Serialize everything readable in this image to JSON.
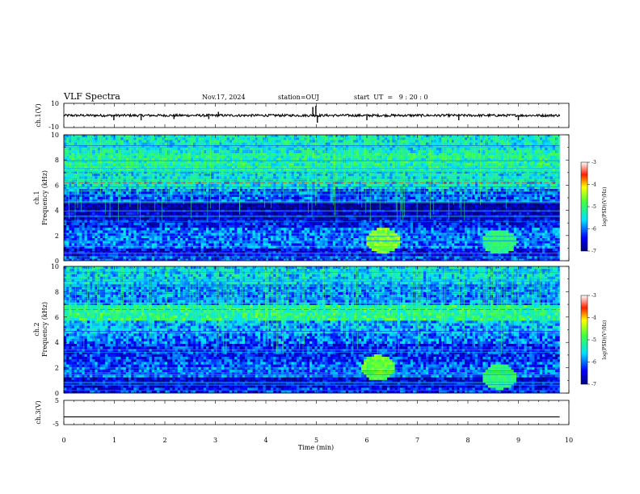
{
  "header": {
    "title": "VLF Spectra",
    "date": "Nov.17, 2024",
    "station": "station=OUJ",
    "start_ut": "start  UT  =   9 : 20 : 0"
  },
  "chart_data": [
    {
      "type": "line",
      "panel": "ch1-waveform",
      "ylabel": "ch.1(V)",
      "ylim": [
        -10,
        10
      ],
      "yticks": [
        "10",
        "-10"
      ],
      "xlim": [
        0,
        10
      ],
      "baseline": 0,
      "x_end": 9.82,
      "spikes": [
        {
          "x": 0.99,
          "y": -4
        },
        {
          "x": 1.53,
          "y": -4
        },
        {
          "x": 2.18,
          "y": -3
        },
        {
          "x": 2.87,
          "y": -3
        },
        {
          "x": 3.06,
          "y": 3
        },
        {
          "x": 4.93,
          "y": 7
        },
        {
          "x": 4.99,
          "y": 8
        },
        {
          "x": 5.02,
          "y": -6
        },
        {
          "x": 6.0,
          "y": -4
        },
        {
          "x": 7.82,
          "y": -4
        },
        {
          "x": 9.0,
          "y": -4
        }
      ],
      "color": "#000000"
    },
    {
      "type": "heatmap",
      "panel": "ch1-spectrogram",
      "ylabel": "ch.1\nFrequency (kHz)",
      "ylim": [
        0,
        10
      ],
      "yticks": [
        "0",
        "2",
        "4",
        "6",
        "8",
        "10"
      ],
      "xlim": [
        0,
        10
      ],
      "x_end": 9.82,
      "colorbar": {
        "label": "log(PSD)(V²/Hz)",
        "range": [
          -7,
          -3
        ],
        "ticks": [
          "-3",
          "-4",
          "-5",
          "-6",
          "-7"
        ]
      },
      "bands": [
        {
          "fmin": 0,
          "fmax": 0.4,
          "level": -6.2
        },
        {
          "fmin": 0.4,
          "fmax": 1.0,
          "level": -6.5
        },
        {
          "fmin": 1.0,
          "fmax": 2.6,
          "level": -6.0
        },
        {
          "fmin": 2.6,
          "fmax": 3.2,
          "level": -6.4
        },
        {
          "fmin": 3.2,
          "fmax": 4.0,
          "level": -6.7
        },
        {
          "fmin": 4.0,
          "fmax": 4.6,
          "level": -6.9
        },
        {
          "fmin": 4.6,
          "fmax": 5.6,
          "level": -6.1
        },
        {
          "fmin": 5.6,
          "fmax": 7.2,
          "level": -5.5
        },
        {
          "fmin": 7.2,
          "fmax": 8.6,
          "level": -5.2
        },
        {
          "fmin": 8.6,
          "fmax": 10,
          "level": -5.4
        }
      ],
      "hotspots": [
        {
          "t": 6.3,
          "f": 1.6,
          "level": -4.6
        },
        {
          "t": 8.6,
          "f": 1.5,
          "level": -5.0
        }
      ],
      "red_lines_khz": [
        7.0,
        6.2
      ]
    },
    {
      "type": "heatmap",
      "panel": "ch2-spectrogram",
      "ylabel": "ch.2\nFrequency (kHz)",
      "ylim": [
        0,
        10
      ],
      "yticks": [
        "0",
        "2",
        "4",
        "6",
        "8",
        "10"
      ],
      "xlim": [
        0,
        10
      ],
      "x_end": 9.82,
      "colorbar": {
        "label": "log(PSD)(V²/Hz)",
        "range": [
          -7,
          -3
        ],
        "ticks": [
          "-3",
          "-4",
          "-5",
          "-6",
          "-7"
        ]
      },
      "bands": [
        {
          "fmin": 0,
          "fmax": 0.5,
          "level": -6.3
        },
        {
          "fmin": 0.5,
          "fmax": 1.2,
          "level": -6.6
        },
        {
          "fmin": 1.2,
          "fmax": 2.4,
          "level": -6.1
        },
        {
          "fmin": 2.4,
          "fmax": 3.8,
          "level": -6.3
        },
        {
          "fmin": 3.8,
          "fmax": 4.8,
          "level": -6.0
        },
        {
          "fmin": 4.8,
          "fmax": 5.8,
          "level": -5.8
        },
        {
          "fmin": 5.8,
          "fmax": 7.0,
          "level": -5.1
        },
        {
          "fmin": 7.0,
          "fmax": 8.6,
          "level": -5.9
        },
        {
          "fmin": 8.6,
          "fmax": 10,
          "level": -5.6
        }
      ],
      "hotspots": [
        {
          "t": 6.2,
          "f": 2.0,
          "level": -4.7
        },
        {
          "t": 8.6,
          "f": 1.3,
          "level": -5.0
        }
      ],
      "red_lines_khz": [
        6.6,
        8.0
      ]
    },
    {
      "type": "line",
      "panel": "ch3-waveform",
      "ylabel": "ch.3(V)",
      "ylim": [
        -5,
        5
      ],
      "yticks": [
        "5",
        "-5"
      ],
      "xlim": [
        0,
        10
      ],
      "baseline": -1.8,
      "x_end": 9.82,
      "xlabel": "Time (min)",
      "xticks": [
        "0",
        "1",
        "2",
        "3",
        "4",
        "5",
        "6",
        "7",
        "8",
        "9",
        "10"
      ],
      "color": "#000000"
    }
  ]
}
